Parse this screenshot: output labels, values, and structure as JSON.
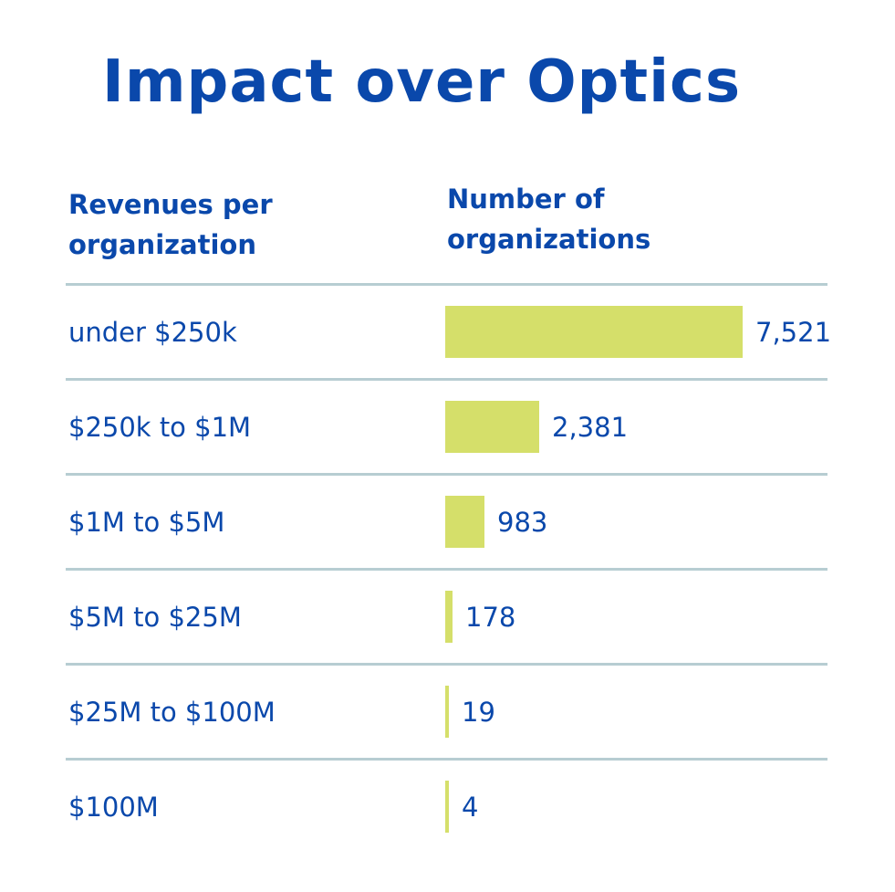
{
  "chart_data": {
    "type": "bar",
    "orientation": "horizontal",
    "title": "Impact over Optics",
    "xlabel": "Number of organizations",
    "ylabel": "Revenues per organization",
    "categories": [
      "under $250k",
      "$250k to $1M",
      "$1M to $5M",
      "$5M to $25M",
      "$25M to $100M",
      "$100M"
    ],
    "values": [
      7521,
      2381,
      983,
      178,
      19,
      4
    ],
    "value_labels": [
      "7,521",
      "2,381",
      "983",
      "178",
      "19",
      "4"
    ],
    "xlim": [
      0,
      7521
    ],
    "grid": false,
    "legend": "none"
  },
  "headers": {
    "left_line1": "Revenues per",
    "left_line2": "organization",
    "right_line1": "Number of",
    "right_line2": "organizations"
  },
  "colors": {
    "text": "#0a48ab",
    "bar": "#d5df6a",
    "divider": "#b7cdd2"
  }
}
